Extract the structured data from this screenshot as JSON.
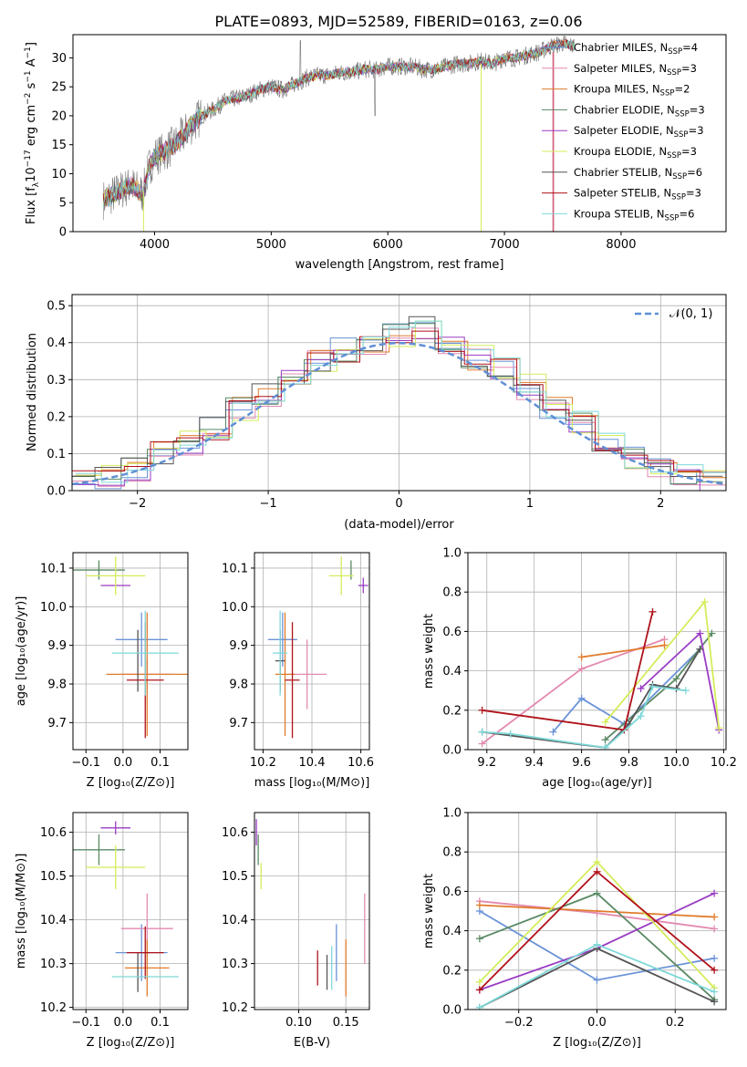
{
  "title": "PLATE=0893, MJD=52589, FIBERID=0163, z=0.06",
  "colors": {
    "Chabrier MILES": "#6a93d8",
    "Salpeter MILES": "#e28ab0",
    "Kroupa MILES": "#e07b2c",
    "Chabrier ELODIE": "#5a8a64",
    "Salpeter ELODIE": "#9a3cc4",
    "Kroupa ELODIE": "#d4ec5a",
    "Chabrier STELIB": "#555555",
    "Salpeter STELIB": "#b0121b",
    "Kroupa STELIB": "#7fd8d8"
  },
  "spectrum": {
    "xlabel": "wavelength [Angstrom, rest frame]",
    "ylabel": "Flux [f_λ10^-17 erg cm^-2 s^-1 A^-1]",
    "xticks": [
      "4000",
      "5000",
      "6000",
      "7000",
      "8000"
    ],
    "yticks": [
      "0",
      "5",
      "10",
      "15",
      "20",
      "25",
      "30"
    ],
    "legend": [
      {
        "model": "Chabrier MILES",
        "pre": "Chabrier MILES, N",
        "sub": "SSP",
        "post": "=4"
      },
      {
        "model": "Salpeter MILES",
        "pre": "Salpeter MILES, N",
        "sub": "SSP",
        "post": "=3"
      },
      {
        "model": "Kroupa MILES",
        "pre": "Kroupa MILES, N",
        "sub": "SSP",
        "post": "=2"
      },
      {
        "model": "Chabrier ELODIE",
        "pre": "Chabrier ELODIE, N",
        "sub": "SSP",
        "post": "=3"
      },
      {
        "model": "Salpeter ELODIE",
        "pre": "Salpeter ELODIE, N",
        "sub": "SSP",
        "post": "=3"
      },
      {
        "model": "Kroupa ELODIE",
        "pre": "Kroupa ELODIE, N",
        "sub": "SSP",
        "post": "=3"
      },
      {
        "model": "Chabrier STELIB",
        "pre": "Chabrier STELIB, N",
        "sub": "SSP",
        "post": "=6"
      },
      {
        "model": "Salpeter STELIB",
        "pre": "Salpeter STELIB, N",
        "sub": "SSP",
        "post": "=3"
      },
      {
        "model": "Kroupa STELIB",
        "pre": "Kroupa STELIB, N",
        "sub": "SSP",
        "post": "=6"
      }
    ]
  },
  "residuals": {
    "xlabel": "(data-model)/error",
    "ylabel": "Normed distribution",
    "xticks": [
      "−2",
      "−1",
      "0",
      "1",
      "2"
    ],
    "yticks": [
      "0.0",
      "0.1",
      "0.2",
      "0.3",
      "0.4",
      "0.5"
    ],
    "legend": "𝒩(0, 1)"
  },
  "panels": {
    "age_vs_Z": {
      "xlabel": "Z [log₁₀(Z/Z⊙)]",
      "ylabel": "age  [log₁₀(age/yr)]",
      "xticks": [
        "−0.1",
        "0.0",
        "0.1"
      ],
      "yticks": [
        "9.7",
        "9.8",
        "9.9",
        "10.0",
        "10.1"
      ]
    },
    "age_vs_mass": {
      "xlabel": "mass [log₁₀(M/M⊙)]",
      "xticks": [
        "10.2",
        "10.4",
        "10.6"
      ],
      "yticks": [
        "9.7",
        "9.8",
        "9.9",
        "10.0",
        "10.1"
      ]
    },
    "weight_vs_age": {
      "xlabel": "age  [log₁₀(age/yr)]",
      "ylabel": "mass weight",
      "xticks": [
        "9.2",
        "9.4",
        "9.6",
        "9.8",
        "10.0",
        "10.2"
      ],
      "yticks": [
        "0.0",
        "0.2",
        "0.4",
        "0.6",
        "0.8",
        "1.0"
      ]
    },
    "mass_vs_Z": {
      "xlabel": "Z [log₁₀(Z/Z⊙)]",
      "ylabel": "mass [log₁₀(M/M⊙)]",
      "xticks": [
        "−0.1",
        "0.0",
        "0.1"
      ],
      "yticks": [
        "10.2",
        "10.3",
        "10.4",
        "10.5",
        "10.6"
      ]
    },
    "mass_vs_ebv": {
      "xlabel": "E(B-V)",
      "xticks": [
        "0.10",
        "0.15"
      ],
      "yticks": [
        "10.2",
        "10.3",
        "10.4",
        "10.5",
        "10.6"
      ]
    },
    "weight_vs_Z": {
      "xlabel": "Z [log₁₀(Z/Z⊙)]",
      "ylabel": "mass weight",
      "xticks": [
        "−0.2",
        "0.0",
        "0.2"
      ],
      "yticks": [
        "0.0",
        "0.2",
        "0.4",
        "0.6",
        "0.8",
        "1.0"
      ]
    }
  },
  "chart_data": [
    {
      "type": "line",
      "title": "PLATE=0893, MJD=52589, FIBERID=0163, z=0.06",
      "xlim": [
        3300,
        8900
      ],
      "ylim": [
        0,
        34
      ],
      "series_note_values": "smoothed continuum shape shared by all 9 model fits",
      "x": [
        3560,
        3700,
        3800,
        3900,
        3950,
        4000,
        4100,
        4200,
        4300,
        4400,
        4500,
        4600,
        4700,
        4800,
        4900,
        5000,
        5100,
        5200,
        5300,
        5400,
        5500,
        5600,
        5700,
        5800,
        5900,
        6000,
        6100,
        6200,
        6300,
        6400,
        6500,
        6600,
        6700,
        6800,
        6900,
        7000,
        7100,
        7200,
        7300,
        7400,
        7500,
        7600
      ],
      "y": [
        5.5,
        7,
        8,
        6.5,
        11,
        13,
        14,
        15.5,
        18,
        20,
        21,
        22.5,
        23,
        23.5,
        24.5,
        25,
        24.5,
        25.5,
        26.5,
        27,
        27,
        27.5,
        27.5,
        28,
        28,
        28.5,
        28.5,
        28.5,
        28,
        28,
        28.5,
        29,
        29,
        29.5,
        29,
        30,
        30,
        30.5,
        31,
        32,
        32.5,
        32
      ]
    },
    {
      "type": "line",
      "xlabel": "(data-model)/error",
      "ylabel": "Normed distribution",
      "xlim": [
        -2.5,
        2.5
      ],
      "ylim": [
        0,
        0.53
      ],
      "reference": {
        "name": "𝒩(0, 1)",
        "mu": 0,
        "sigma": 1
      },
      "bin_edges": [
        -2.5,
        -2.3,
        -2.1,
        -1.9,
        -1.7,
        -1.5,
        -1.3,
        -1.1,
        -0.9,
        -0.7,
        -0.5,
        -0.3,
        -0.1,
        0.1,
        0.3,
        0.5,
        0.7,
        0.9,
        1.1,
        1.3,
        1.5,
        1.7,
        1.9,
        2.1,
        2.3,
        2.5
      ],
      "histogram_approx": [
        0.025,
        0.04,
        0.06,
        0.1,
        0.13,
        0.17,
        0.22,
        0.26,
        0.31,
        0.35,
        0.38,
        0.39,
        0.42,
        0.44,
        0.38,
        0.36,
        0.33,
        0.28,
        0.23,
        0.18,
        0.14,
        0.09,
        0.06,
        0.04,
        0.03
      ]
    },
    {
      "type": "scatter",
      "xlabel": "Z [log₁₀(Z/Z⊙)]",
      "ylabel": "age  [log₁₀(age/yr)]",
      "xlim": [
        -0.135,
        0.175
      ],
      "ylim": [
        9.63,
        10.14
      ],
      "points": [
        {
          "model": "Chabrier MILES",
          "x": 0.05,
          "xerr": 0.07,
          "y": 9.915,
          "yerr": 0.07
        },
        {
          "model": "Salpeter MILES",
          "x": 0.065,
          "xerr": 0.07,
          "y": 9.825,
          "yerr": 0.04
        },
        {
          "model": "Kroupa MILES",
          "x": 0.065,
          "xerr": 0.11,
          "y": 9.825,
          "yerr": 0.16
        },
        {
          "model": "Chabrier ELODIE",
          "x": -0.065,
          "xerr": 0.07,
          "y": 10.095,
          "yerr": 0.025
        },
        {
          "model": "Salpeter ELODIE",
          "x": -0.02,
          "xerr": 0.04,
          "y": 10.055,
          "yerr": 0.0
        },
        {
          "model": "Kroupa ELODIE",
          "x": -0.02,
          "xerr": 0.08,
          "y": 10.08,
          "yerr": 0.05
        },
        {
          "model": "Chabrier STELIB",
          "x": 0.04,
          "xerr": 0.0,
          "y": 9.86,
          "yerr": 0.08
        },
        {
          "model": "Salpeter STELIB",
          "x": 0.06,
          "xerr": 0.05,
          "y": 9.81,
          "yerr": 0.15
        },
        {
          "model": "Kroupa STELIB",
          "x": 0.06,
          "xerr": 0.09,
          "y": 9.88,
          "yerr": 0.11
        }
      ]
    },
    {
      "type": "scatter",
      "xlabel": "mass [log₁₀(M/M⊙)]",
      "ylabel": "age  [log₁₀(age/yr)]",
      "xlim": [
        10.165,
        10.635
      ],
      "ylim": [
        9.63,
        10.14
      ],
      "points": [
        {
          "model": "Chabrier MILES",
          "x": 10.28,
          "xerr": 0.06,
          "y": 9.915,
          "yerr": 0.07
        },
        {
          "model": "Salpeter MILES",
          "x": 10.38,
          "xerr": 0.08,
          "y": 9.825,
          "yerr": 0.09
        },
        {
          "model": "Kroupa MILES",
          "x": 10.29,
          "xerr": 0.04,
          "y": 9.825,
          "yerr": 0.16
        },
        {
          "model": "Chabrier ELODIE",
          "x": 10.56,
          "xerr": 0.0,
          "y": 10.095,
          "yerr": 0.025
        },
        {
          "model": "Salpeter ELODIE",
          "x": 10.61,
          "xerr": 0.02,
          "y": 10.055,
          "yerr": 0.02
        },
        {
          "model": "Kroupa ELODIE",
          "x": 10.52,
          "xerr": 0.05,
          "y": 10.08,
          "yerr": 0.05
        },
        {
          "model": "Chabrier STELIB",
          "x": 10.27,
          "xerr": 0.02,
          "y": 9.86,
          "yerr": 0.08
        },
        {
          "model": "Salpeter STELIB",
          "x": 10.32,
          "xerr": 0.03,
          "y": 9.81,
          "yerr": 0.15
        },
        {
          "model": "Kroupa STELIB",
          "x": 10.27,
          "xerr": 0.03,
          "y": 9.88,
          "yerr": 0.11
        }
      ]
    },
    {
      "type": "line",
      "xlabel": "age  [log₁₀(age/yr)]",
      "ylabel": "mass weight",
      "xlim": [
        9.12,
        10.21
      ],
      "ylim": [
        0,
        1
      ],
      "series": [
        {
          "model": "Chabrier MILES",
          "x": [
            9.48,
            9.6,
            9.78,
            10.1
          ],
          "y": [
            0.09,
            0.26,
            0.13,
            0.51
          ]
        },
        {
          "model": "Salpeter MILES",
          "x": [
            9.18,
            9.6,
            9.95
          ],
          "y": [
            0.03,
            0.41,
            0.56
          ]
        },
        {
          "model": "Kroupa MILES",
          "x": [
            9.6,
            9.95
          ],
          "y": [
            0.47,
            0.53
          ]
        },
        {
          "model": "Chabrier ELODIE",
          "x": [
            9.7,
            10.0,
            10.15
          ],
          "y": [
            0.05,
            0.36,
            0.59
          ]
        },
        {
          "model": "Salpeter ELODIE",
          "x": [
            9.85,
            10.1,
            10.18
          ],
          "y": [
            0.31,
            0.59,
            0.1
          ]
        },
        {
          "model": "Kroupa ELODIE",
          "x": [
            9.7,
            10.12,
            10.18
          ],
          "y": [
            0.14,
            0.75,
            0.11
          ]
        },
        {
          "model": "Chabrier STELIB",
          "x": [
            9.18,
            9.7,
            9.8,
            9.9,
            10.0,
            10.1
          ],
          "y": [
            0.09,
            0.01,
            0.13,
            0.33,
            0.31,
            0.51
          ]
        },
        {
          "model": "Salpeter STELIB",
          "x": [
            9.18,
            9.78,
            9.9
          ],
          "y": [
            0.2,
            0.1,
            0.7
          ]
        },
        {
          "model": "Kroupa STELIB",
          "x": [
            9.18,
            9.3,
            9.7,
            9.85,
            9.9,
            10.04
          ],
          "y": [
            0.09,
            0.08,
            0.01,
            0.17,
            0.32,
            0.3
          ]
        }
      ]
    },
    {
      "type": "scatter",
      "xlabel": "Z [log₁₀(Z/Z⊙)]",
      "ylabel": "mass [log₁₀(M/M⊙)]",
      "xlim": [
        -0.135,
        0.175
      ],
      "ylim": [
        10.195,
        10.645
      ],
      "points": [
        {
          "model": "Chabrier MILES",
          "x": 0.05,
          "xerr": 0.07,
          "y": 10.325,
          "yerr": 0.065
        },
        {
          "model": "Salpeter MILES",
          "x": 0.065,
          "xerr": 0.07,
          "y": 10.38,
          "yerr": 0.08
        },
        {
          "model": "Kroupa MILES",
          "x": 0.065,
          "xerr": 0.06,
          "y": 10.29,
          "yerr": 0.065
        },
        {
          "model": "Chabrier ELODIE",
          "x": -0.065,
          "xerr": 0.07,
          "y": 10.56,
          "yerr": 0.035
        },
        {
          "model": "Salpeter ELODIE",
          "x": -0.02,
          "xerr": 0.04,
          "y": 10.61,
          "yerr": 0.015
        },
        {
          "model": "Kroupa ELODIE",
          "x": -0.02,
          "xerr": 0.08,
          "y": 10.52,
          "yerr": 0.05
        },
        {
          "model": "Chabrier STELIB",
          "x": 0.04,
          "xerr": 0.0,
          "y": 10.28,
          "yerr": 0.045
        },
        {
          "model": "Salpeter STELIB",
          "x": 0.06,
          "xerr": 0.05,
          "y": 10.325,
          "yerr": 0.06
        },
        {
          "model": "Kroupa STELIB",
          "x": 0.06,
          "xerr": 0.09,
          "y": 10.27,
          "yerr": 0.0
        }
      ]
    },
    {
      "type": "scatter",
      "xlabel": "E(B-V)",
      "ylabel": "mass [log₁₀(M/M⊙)]",
      "xlim": [
        0.053,
        0.175
      ],
      "ylim": [
        10.195,
        10.645
      ],
      "points": [
        {
          "model": "Chabrier MILES",
          "x": 0.14,
          "y": 10.325,
          "yerr": 0.065
        },
        {
          "model": "Salpeter MILES",
          "x": 0.17,
          "y": 10.38,
          "yerr": 0.08
        },
        {
          "model": "Kroupa MILES",
          "x": 0.15,
          "y": 10.29,
          "yerr": 0.065
        },
        {
          "model": "Chabrier ELODIE",
          "x": 0.057,
          "y": 10.56,
          "yerr": 0.035
        },
        {
          "model": "Salpeter ELODIE",
          "x": 0.055,
          "y": 10.6,
          "yerr": 0.03
        },
        {
          "model": "Kroupa ELODIE",
          "x": 0.06,
          "y": 10.5,
          "yerr": 0.03
        },
        {
          "model": "Chabrier STELIB",
          "x": 0.13,
          "y": 10.28,
          "yerr": 0.04
        },
        {
          "model": "Salpeter STELIB",
          "x": 0.12,
          "y": 10.29,
          "yerr": 0.04
        },
        {
          "model": "Kroupa STELIB",
          "x": 0.135,
          "y": 10.29,
          "yerr": 0.05
        }
      ]
    },
    {
      "type": "line",
      "xlabel": "Z [log₁₀(Z/Z⊙)]",
      "ylabel": "mass weight",
      "xlim": [
        -0.33,
        0.33
      ],
      "ylim": [
        0,
        1
      ],
      "series": [
        {
          "model": "Chabrier MILES",
          "x": [
            -0.3,
            0.0,
            0.3
          ],
          "y": [
            0.5,
            0.15,
            0.26
          ]
        },
        {
          "model": "Salpeter MILES",
          "x": [
            -0.3,
            0.0,
            0.3
          ],
          "y": [
            0.55,
            0.49,
            0.41
          ]
        },
        {
          "model": "Kroupa MILES",
          "x": [
            -0.3,
            0.3
          ],
          "y": [
            0.53,
            0.47
          ]
        },
        {
          "model": "Chabrier ELODIE",
          "x": [
            -0.3,
            0.0,
            0.3
          ],
          "y": [
            0.36,
            0.59,
            0.05
          ]
        },
        {
          "model": "Salpeter ELODIE",
          "x": [
            -0.3,
            0.0,
            0.3
          ],
          "y": [
            0.1,
            0.31,
            0.59
          ]
        },
        {
          "model": "Kroupa ELODIE",
          "x": [
            -0.3,
            0.0,
            0.3
          ],
          "y": [
            0.14,
            0.75,
            0.11
          ]
        },
        {
          "model": "Chabrier STELIB",
          "x": [
            -0.3,
            0.0,
            0.3
          ],
          "y": [
            0.01,
            0.31,
            0.04
          ]
        },
        {
          "model": "Salpeter STELIB",
          "x": [
            -0.3,
            0.0,
            0.3
          ],
          "y": [
            0.1,
            0.7,
            0.2
          ]
        },
        {
          "model": "Kroupa STELIB",
          "x": [
            -0.3,
            0.0,
            0.3
          ],
          "y": [
            0.01,
            0.33,
            0.09
          ]
        }
      ]
    }
  ]
}
